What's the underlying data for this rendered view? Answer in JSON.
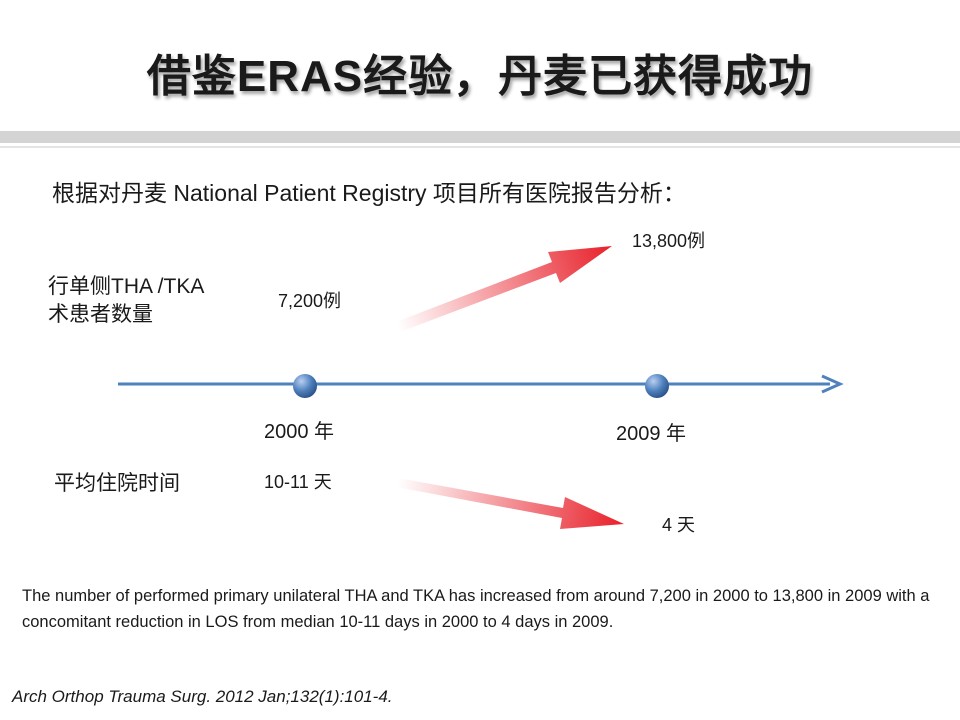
{
  "slide": {
    "title": "借鉴ERAS经验，丹麦已获得成功",
    "subtitle": "根据对丹麦 National Patient Registry 项目所有医院报告分析：",
    "patients_label_line1": "行单侧THA /TKA",
    "patients_label_line2": "术患者数量",
    "patients_2000": "7,200例",
    "patients_2009": "13,800例",
    "year_2000": "2000  年",
    "year_2009": "2009  年",
    "los_label": "平均住院时间",
    "los_2000": "10-11 天",
    "los_2009": "4 天",
    "summary": "The number of performed primary unilateral THA and TKA has increased from around 7,200 in 2000 to 13,800 in 2009 with a concomitant reduction in LOS from median 10-11 days in 2000 to 4 days in 2009.",
    "citation": "Arch Orthop Trauma Surg. 2012 Jan;132(1):101-4."
  },
  "colors": {
    "timeline": "#4f81bd",
    "arrow": "#e8202a",
    "band": "#d4d4d4"
  }
}
